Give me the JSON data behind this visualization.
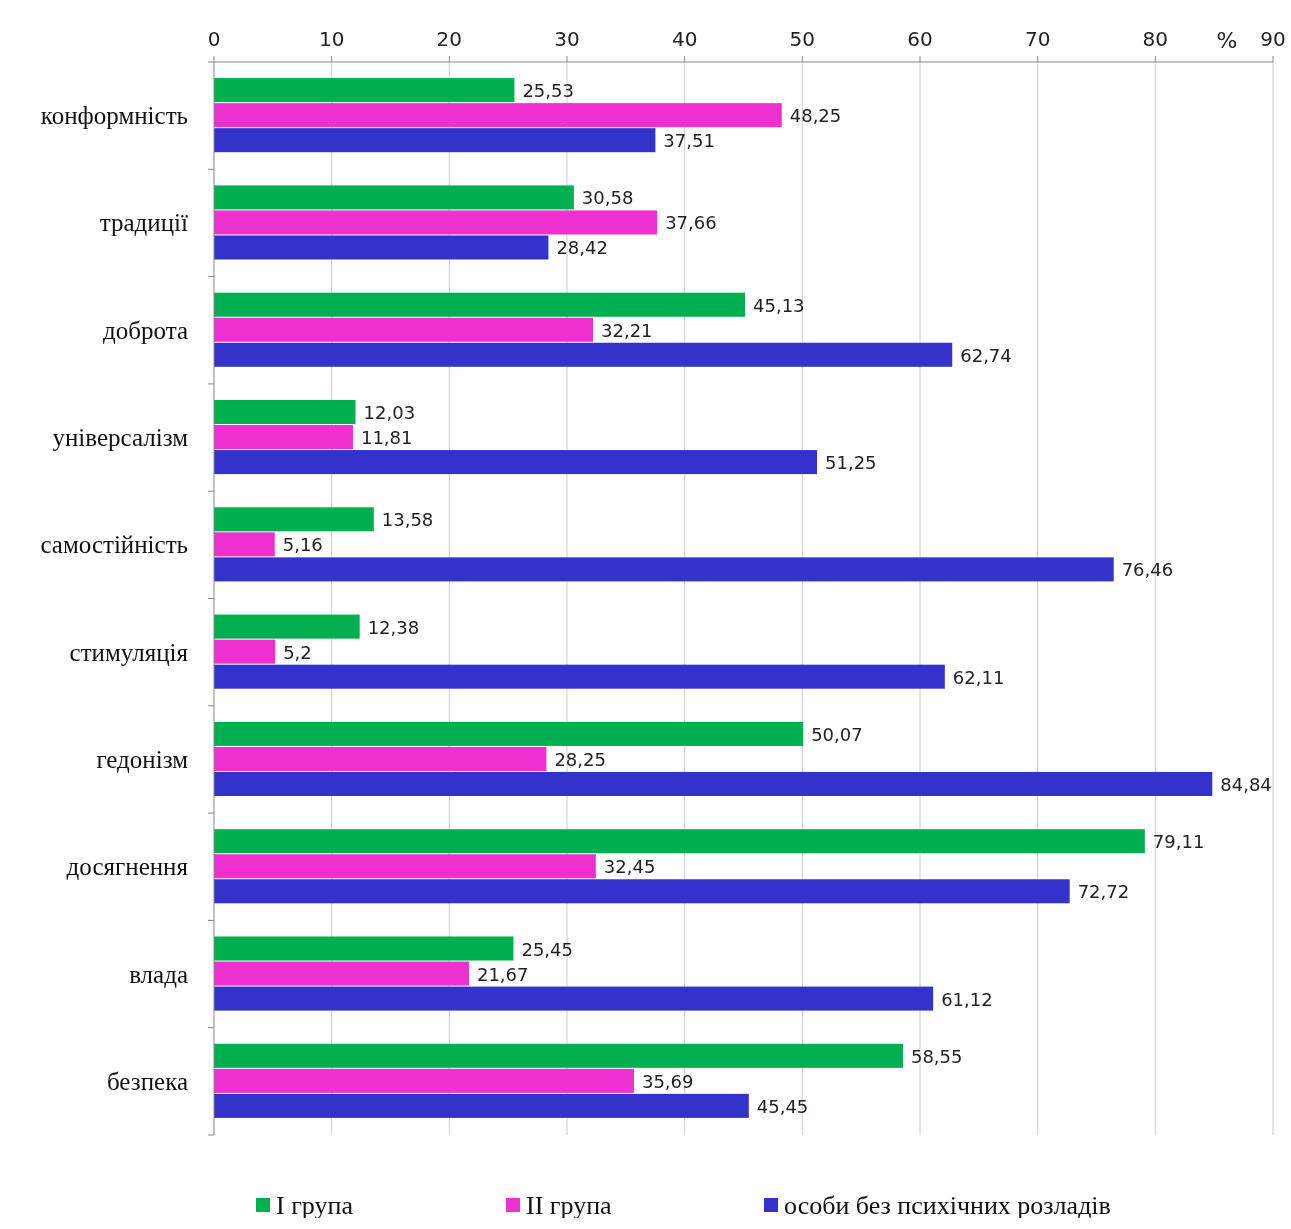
{
  "chart_data": {
    "type": "bar",
    "orientation": "horizontal",
    "xlabel": "%",
    "categories": [
      "конформність",
      "традиції",
      "доброта",
      "універсалізм",
      "самостійність",
      "стимуляція",
      "гедонізм",
      "досягнення",
      "влада",
      "безпека"
    ],
    "series": [
      {
        "name": "I група",
        "color": "#00b050",
        "values": [
          25.53,
          30.58,
          45.13,
          12.03,
          13.58,
          12.38,
          50.07,
          79.11,
          25.45,
          58.55
        ],
        "value_labels": [
          "25,53",
          "30,58",
          "45,13",
          "12,03",
          "13,58",
          "12,38",
          "50,07",
          "79,11",
          "25,45",
          "58,55"
        ]
      },
      {
        "name": "II група",
        "color": "#ee30d0",
        "values": [
          48.25,
          37.66,
          32.21,
          11.81,
          5.16,
          5.2,
          28.25,
          32.45,
          21.67,
          35.69
        ],
        "value_labels": [
          "48,25",
          "37,66",
          "32,21",
          "11,81",
          "5,16",
          "5,2",
          "28,25",
          "32,45",
          "21,67",
          "35,69"
        ]
      },
      {
        "name": "особи без психічних розладів",
        "color": "#3333cc",
        "values": [
          37.51,
          28.42,
          62.74,
          51.25,
          76.46,
          62.11,
          84.84,
          72.72,
          61.12,
          45.45
        ],
        "value_labels": [
          "37,51",
          "28,42",
          "62,74",
          "51,25",
          "76,46",
          "62,11",
          "84,84",
          "72,72",
          "61,12",
          "45,45"
        ]
      }
    ],
    "xlim": [
      0,
      90
    ],
    "xticks": [
      0,
      10,
      20,
      30,
      40,
      50,
      60,
      70,
      80,
      90
    ],
    "grid": "x",
    "legend": "bottom"
  }
}
